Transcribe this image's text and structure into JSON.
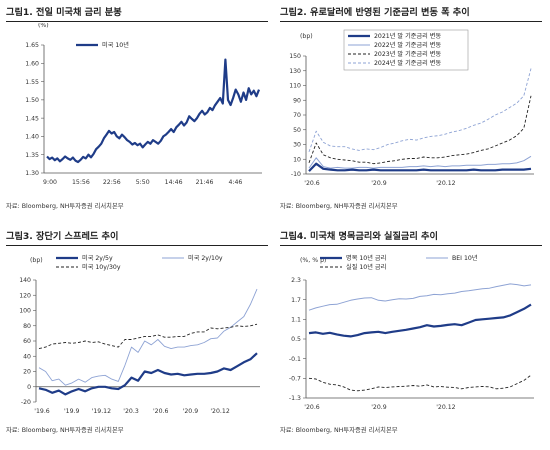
{
  "panels": [
    {
      "title": "그림1. 전일 미국채 금리 분봉",
      "source": "자료: Bloomberg, NH투자증권 리서치본부",
      "chart_data": {
        "type": "line",
        "unit": "(%)",
        "ylim": [
          1.3,
          1.65
        ],
        "yticks": [
          "1.65",
          "1.60",
          "1.55",
          "1.50",
          "1.45",
          "1.40",
          "1.35",
          "1.30"
        ],
        "ytick_values": [
          1.65,
          1.6,
          1.55,
          1.5,
          1.45,
          1.4,
          1.35,
          1.3
        ],
        "xticks": [
          "9:00",
          "15:56",
          "22:56",
          "5:50",
          "14:46",
          "21:46",
          "4:46"
        ],
        "legend": "top-left",
        "series": [
          {
            "name": "미국 10년",
            "color": "#1f3c88",
            "width": 2.2,
            "values": [
              1.345,
              1.338,
              1.342,
              1.335,
              1.34,
              1.332,
              1.338,
              1.345,
              1.34,
              1.336,
              1.342,
              1.334,
              1.33,
              1.336,
              1.344,
              1.34,
              1.35,
              1.343,
              1.352,
              1.365,
              1.372,
              1.38,
              1.395,
              1.405,
              1.415,
              1.408,
              1.412,
              1.4,
              1.395,
              1.405,
              1.398,
              1.39,
              1.385,
              1.378,
              1.382,
              1.376,
              1.38,
              1.37,
              1.378,
              1.385,
              1.38,
              1.39,
              1.385,
              1.38,
              1.388,
              1.4,
              1.405,
              1.412,
              1.42,
              1.412,
              1.425,
              1.432,
              1.44,
              1.43,
              1.438,
              1.455,
              1.448,
              1.442,
              1.45,
              1.462,
              1.47,
              1.46,
              1.466,
              1.478,
              1.472,
              1.485,
              1.495,
              1.505,
              1.49,
              1.61,
              1.5,
              1.486,
              1.505,
              1.528,
              1.515,
              1.495,
              1.52,
              1.5,
              1.532,
              1.515,
              1.525,
              1.51,
              1.528
            ]
          }
        ]
      }
    },
    {
      "title": "그림2. 유로달러에 반영된 기준금리 변동 폭 추이",
      "source": "자료: Bloomberg, NH투자증권 리서치본부",
      "chart_data": {
        "type": "line",
        "unit": "(bp)",
        "ylim": [
          -10,
          150
        ],
        "yticks": [
          "150",
          "130",
          "110",
          "90",
          "70",
          "50",
          "30",
          "10",
          "-10"
        ],
        "ytick_values": [
          150,
          130,
          110,
          90,
          70,
          50,
          30,
          10,
          -10
        ],
        "xticks": [
          "'20.6",
          "'20.9",
          "'20.12"
        ],
        "xtick_pos": [
          0.0,
          0.31,
          0.62
        ],
        "legend": "top-center",
        "series": [
          {
            "name": "2021년 말 기준금리 변동",
            "color": "#1f3c88",
            "width": 2.2,
            "dash": "",
            "values": [
              -6,
              4,
              -3,
              -4,
              -5,
              -5,
              -4,
              -5,
              -5,
              -4,
              -5,
              -5,
              -5,
              -5,
              -5,
              -5,
              -4,
              -5,
              -5,
              -5,
              -5,
              -5,
              -5,
              -4,
              -5,
              -5,
              -5,
              -4,
              -4,
              -4,
              -4,
              -3
            ]
          },
          {
            "name": "2022년 말 기준금리 변동",
            "color": "#8ea3d4",
            "width": 1.0,
            "dash": "",
            "values": [
              -2,
              12,
              0,
              -2,
              -1,
              -2,
              -2,
              -1,
              -1,
              -2,
              -1,
              -1,
              -1,
              -1,
              0,
              0,
              1,
              0,
              1,
              0,
              1,
              1,
              2,
              2,
              2,
              3,
              3,
              4,
              4,
              5,
              8,
              14
            ]
          },
          {
            "name": "2023년 말 기준금리 변동",
            "color": "#222222",
            "width": 0.9,
            "dash": "3,2",
            "values": [
              5,
              32,
              16,
              12,
              10,
              9,
              8,
              6,
              6,
              4,
              5,
              7,
              8,
              10,
              11,
              11,
              13,
              12,
              12,
              13,
              15,
              16,
              17,
              19,
              22,
              24,
              28,
              32,
              36,
              42,
              52,
              96
            ]
          },
          {
            "name": "2024년 말 기준금리 변동",
            "color": "#8ea3d4",
            "width": 0.9,
            "dash": "3,2",
            "values": [
              20,
              48,
              33,
              28,
              27,
              27,
              24,
              22,
              24,
              23,
              26,
              30,
              32,
              35,
              37,
              36,
              39,
              41,
              42,
              44,
              47,
              49,
              52,
              56,
              59,
              64,
              70,
              74,
              80,
              86,
              96,
              133
            ]
          }
        ]
      }
    },
    {
      "title": "그림3. 장단기 스프레드 추이",
      "source": "자료: Bloomberg, NH투자증권 리서치본부",
      "chart_data": {
        "type": "line",
        "unit": "(bp)",
        "ylim": [
          -20,
          140
        ],
        "yticks": [
          "140",
          "120",
          "100",
          "80",
          "60",
          "40",
          "20",
          "0",
          "-20"
        ],
        "ytick_values": [
          140,
          120,
          100,
          80,
          60,
          40,
          20,
          0,
          -20
        ],
        "xticks": [
          "'19.6",
          "'19.9",
          "'19.12",
          "'20.3",
          "'20.6",
          "'20.9",
          "'20.12"
        ],
        "xtick_pos": [
          0.0,
          0.14,
          0.28,
          0.42,
          0.56,
          0.7,
          0.84
        ],
        "legend": "top-center",
        "series": [
          {
            "name": "미국 2y/5y",
            "color": "#1f3c88",
            "width": 2.2,
            "dash": "",
            "values": [
              -2,
              -4,
              -8,
              -5,
              -10,
              -6,
              -3,
              -6,
              -2,
              0,
              0,
              -2,
              -3,
              2,
              12,
              8,
              20,
              18,
              22,
              18,
              16,
              17,
              15,
              16,
              17,
              17,
              18,
              20,
              24,
              22,
              27,
              32,
              36,
              44
            ]
          },
          {
            "name": "미국 2y/10y",
            "color": "#8ea3d4",
            "width": 0.9,
            "dash": "",
            "values": [
              25,
              20,
              8,
              10,
              2,
              5,
              10,
              6,
              12,
              14,
              15,
              10,
              7,
              28,
              52,
              45,
              60,
              55,
              62,
              53,
              50,
              52,
              52,
              54,
              55,
              58,
              63,
              64,
              73,
              78,
              85,
              92,
              108,
              128
            ]
          },
          {
            "name": "미국 10y/30y",
            "color": "#222222",
            "width": 0.9,
            "dash": "3,2",
            "values": [
              50,
              52,
              56,
              57,
              58,
              57,
              58,
              60,
              58,
              59,
              56,
              54,
              52,
              62,
              62,
              64,
              66,
              66,
              68,
              65,
              65,
              66,
              66,
              70,
              72,
              72,
              77,
              76,
              77,
              78,
              80,
              79,
              80,
              82
            ]
          }
        ]
      }
    },
    {
      "title": "그림4. 미국채 명목금리와 실질금리 추이",
      "source": "자료: Bloomberg, NH투자증권 리서치본부",
      "chart_data": {
        "type": "line",
        "unit": "(%, % p)",
        "ylim": [
          -1.3,
          2.3
        ],
        "yticks": [
          "2.3",
          "1.7",
          "1.1",
          "0.5",
          "-0.1",
          "-0.7",
          "-1.3"
        ],
        "ytick_values": [
          2.3,
          1.7,
          1.1,
          0.5,
          -0.1,
          -0.7,
          -1.3
        ],
        "xticks": [
          "'20.6",
          "'20.9",
          "'20.12"
        ],
        "xtick_pos": [
          0.0,
          0.31,
          0.62
        ],
        "legend": "top-center",
        "series": [
          {
            "name": "명목 10년 금리",
            "color": "#1f3c88",
            "width": 2.2,
            "dash": "",
            "values": [
              0.68,
              0.7,
              0.66,
              0.69,
              0.64,
              0.6,
              0.58,
              0.62,
              0.68,
              0.7,
              0.72,
              0.68,
              0.72,
              0.75,
              0.78,
              0.82,
              0.86,
              0.92,
              0.88,
              0.9,
              0.93,
              0.95,
              0.92,
              1.0,
              1.08,
              1.1,
              1.12,
              1.14,
              1.16,
              1.22,
              1.32,
              1.42,
              1.55
            ]
          },
          {
            "name": "BEI 10년",
            "color": "#8ea3d4",
            "width": 1.0,
            "dash": "",
            "values": [
              1.38,
              1.45,
              1.5,
              1.55,
              1.56,
              1.62,
              1.68,
              1.72,
              1.75,
              1.76,
              1.68,
              1.66,
              1.7,
              1.73,
              1.72,
              1.74,
              1.8,
              1.82,
              1.86,
              1.85,
              1.88,
              1.9,
              1.95,
              1.97,
              2.0,
              2.03,
              2.05,
              2.1,
              2.14,
              2.18,
              2.16,
              2.12,
              2.15
            ]
          },
          {
            "name": "실질 10년 금리",
            "color": "#222222",
            "width": 0.9,
            "dash": "3,2",
            "values": [
              -0.7,
              -0.72,
              -0.82,
              -0.88,
              -0.9,
              -0.96,
              -1.06,
              -1.08,
              -1.06,
              -1.02,
              -0.96,
              -0.98,
              -0.96,
              -0.95,
              -0.94,
              -0.92,
              -0.94,
              -0.9,
              -0.96,
              -0.95,
              -0.97,
              -0.98,
              -1.02,
              -0.98,
              -0.96,
              -0.95,
              -0.96,
              -1.02,
              -1.0,
              -0.96,
              -0.86,
              -0.76,
              -0.6
            ]
          }
        ]
      }
    }
  ]
}
